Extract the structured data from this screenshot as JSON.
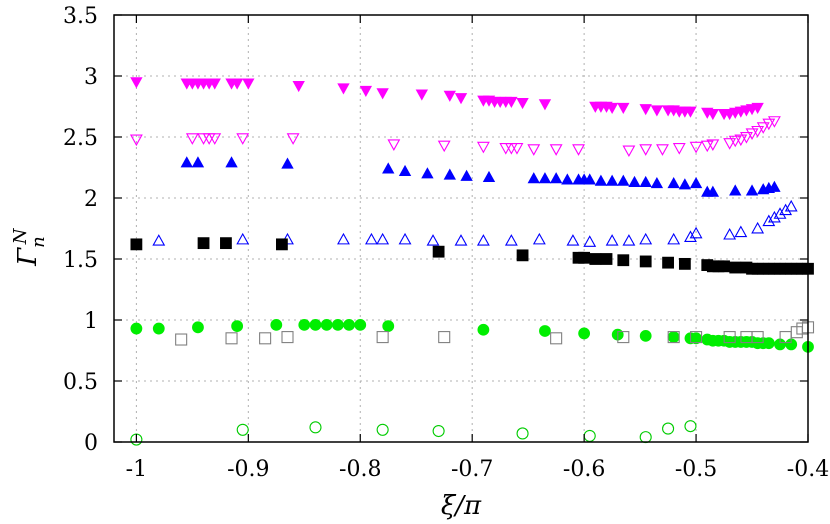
{
  "chart_data": {
    "type": "scatter",
    "xlabel": "ξ/π",
    "ylabel": "Γ",
    "ylabel_sup": "N",
    "ylabel_sub": "n",
    "xlim": [
      -1.02,
      -0.4
    ],
    "ylim": [
      0,
      3.5
    ],
    "xticks": [
      -1,
      -0.9,
      -0.8,
      -0.7,
      -0.6,
      -0.5,
      -0.4
    ],
    "xtick_labels": [
      "-1",
      "-0.9",
      "-0.8",
      "-0.7",
      "-0.6",
      "-0.5",
      "-0.4"
    ],
    "yticks": [
      0,
      0.5,
      1,
      1.5,
      2,
      2.5,
      3,
      3.5
    ],
    "ytick_labels": [
      "0",
      "0.5",
      "1",
      "1.5",
      "2",
      "2.5",
      "3",
      "3.5"
    ],
    "grid": true,
    "legend": "none",
    "series": [
      {
        "marker": "triangle-down-filled",
        "color": "#ff00ff",
        "points": [
          [
            -1.0,
            2.95
          ],
          [
            -0.955,
            2.94
          ],
          [
            -0.95,
            2.94
          ],
          [
            -0.945,
            2.94
          ],
          [
            -0.94,
            2.94
          ],
          [
            -0.935,
            2.94
          ],
          [
            -0.93,
            2.94
          ],
          [
            -0.915,
            2.94
          ],
          [
            -0.91,
            2.94
          ],
          [
            -0.9,
            2.94
          ],
          [
            -0.855,
            2.92
          ],
          [
            -0.815,
            2.9
          ],
          [
            -0.795,
            2.88
          ],
          [
            -0.78,
            2.86
          ],
          [
            -0.745,
            2.85
          ],
          [
            -0.72,
            2.84
          ],
          [
            -0.71,
            2.82
          ],
          [
            -0.69,
            2.8
          ],
          [
            -0.685,
            2.8
          ],
          [
            -0.68,
            2.79
          ],
          [
            -0.675,
            2.79
          ],
          [
            -0.67,
            2.79
          ],
          [
            -0.665,
            2.79
          ],
          [
            -0.655,
            2.78
          ],
          [
            -0.635,
            2.77
          ],
          [
            -0.59,
            2.75
          ],
          [
            -0.585,
            2.75
          ],
          [
            -0.58,
            2.75
          ],
          [
            -0.575,
            2.74
          ],
          [
            -0.565,
            2.74
          ],
          [
            -0.545,
            2.73
          ],
          [
            -0.535,
            2.72
          ],
          [
            -0.525,
            2.72
          ],
          [
            -0.52,
            2.72
          ],
          [
            -0.515,
            2.71
          ],
          [
            -0.51,
            2.71
          ],
          [
            -0.505,
            2.71
          ],
          [
            -0.49,
            2.7
          ],
          [
            -0.485,
            2.69
          ],
          [
            -0.475,
            2.69
          ],
          [
            -0.47,
            2.69
          ],
          [
            -0.465,
            2.7
          ],
          [
            -0.46,
            2.71
          ],
          [
            -0.455,
            2.72
          ],
          [
            -0.45,
            2.73
          ],
          [
            -0.445,
            2.74
          ]
        ]
      },
      {
        "marker": "triangle-down-open",
        "color": "#ff00ff",
        "points": [
          [
            -1.0,
            2.48
          ],
          [
            -0.95,
            2.49
          ],
          [
            -0.94,
            2.49
          ],
          [
            -0.935,
            2.49
          ],
          [
            -0.93,
            2.49
          ],
          [
            -0.905,
            2.49
          ],
          [
            -0.86,
            2.49
          ],
          [
            -0.77,
            2.44
          ],
          [
            -0.725,
            2.43
          ],
          [
            -0.69,
            2.42
          ],
          [
            -0.67,
            2.41
          ],
          [
            -0.665,
            2.41
          ],
          [
            -0.66,
            2.41
          ],
          [
            -0.645,
            2.4
          ],
          [
            -0.625,
            2.4
          ],
          [
            -0.605,
            2.4
          ],
          [
            -0.56,
            2.39
          ],
          [
            -0.545,
            2.4
          ],
          [
            -0.53,
            2.4
          ],
          [
            -0.515,
            2.41
          ],
          [
            -0.5,
            2.42
          ],
          [
            -0.49,
            2.43
          ],
          [
            -0.485,
            2.44
          ],
          [
            -0.47,
            2.45
          ],
          [
            -0.465,
            2.47
          ],
          [
            -0.46,
            2.48
          ],
          [
            -0.455,
            2.5
          ],
          [
            -0.45,
            2.53
          ],
          [
            -0.445,
            2.55
          ],
          [
            -0.44,
            2.58
          ],
          [
            -0.435,
            2.61
          ],
          [
            -0.43,
            2.63
          ]
        ]
      },
      {
        "marker": "triangle-up-filled",
        "color": "#0000ff",
        "points": [
          [
            -0.955,
            2.29
          ],
          [
            -0.945,
            2.29
          ],
          [
            -0.915,
            2.29
          ],
          [
            -0.865,
            2.28
          ],
          [
            -0.775,
            2.24
          ],
          [
            -0.76,
            2.22
          ],
          [
            -0.74,
            2.2
          ],
          [
            -0.72,
            2.19
          ],
          [
            -0.705,
            2.18
          ],
          [
            -0.685,
            2.17
          ],
          [
            -0.645,
            2.16
          ],
          [
            -0.635,
            2.16
          ],
          [
            -0.625,
            2.16
          ],
          [
            -0.615,
            2.15
          ],
          [
            -0.605,
            2.15
          ],
          [
            -0.6,
            2.15
          ],
          [
            -0.595,
            2.15
          ],
          [
            -0.585,
            2.14
          ],
          [
            -0.575,
            2.14
          ],
          [
            -0.565,
            2.14
          ],
          [
            -0.555,
            2.13
          ],
          [
            -0.545,
            2.13
          ],
          [
            -0.535,
            2.12
          ],
          [
            -0.52,
            2.12
          ],
          [
            -0.51,
            2.11
          ],
          [
            -0.5,
            2.12
          ],
          [
            -0.49,
            2.05
          ],
          [
            -0.485,
            2.05
          ],
          [
            -0.465,
            2.06
          ],
          [
            -0.45,
            2.06
          ],
          [
            -0.44,
            2.07
          ],
          [
            -0.435,
            2.08
          ],
          [
            -0.43,
            2.09
          ]
        ]
      },
      {
        "marker": "triangle-up-open",
        "color": "#0000ff",
        "points": [
          [
            -0.98,
            1.65
          ],
          [
            -0.905,
            1.66
          ],
          [
            -0.865,
            1.66
          ],
          [
            -0.815,
            1.66
          ],
          [
            -0.79,
            1.66
          ],
          [
            -0.78,
            1.66
          ],
          [
            -0.76,
            1.66
          ],
          [
            -0.735,
            1.65
          ],
          [
            -0.71,
            1.65
          ],
          [
            -0.69,
            1.65
          ],
          [
            -0.665,
            1.65
          ],
          [
            -0.64,
            1.66
          ],
          [
            -0.61,
            1.65
          ],
          [
            -0.595,
            1.64
          ],
          [
            -0.575,
            1.65
          ],
          [
            -0.56,
            1.65
          ],
          [
            -0.545,
            1.66
          ],
          [
            -0.52,
            1.66
          ],
          [
            -0.505,
            1.68
          ],
          [
            -0.5,
            1.71
          ],
          [
            -0.47,
            1.7
          ],
          [
            -0.46,
            1.72
          ],
          [
            -0.445,
            1.75
          ],
          [
            -0.435,
            1.81
          ],
          [
            -0.43,
            1.84
          ],
          [
            -0.425,
            1.87
          ],
          [
            -0.42,
            1.9
          ],
          [
            -0.415,
            1.93
          ]
        ]
      },
      {
        "marker": "square-filled",
        "color": "#000000",
        "points": [
          [
            -1.0,
            1.62
          ],
          [
            -0.94,
            1.63
          ],
          [
            -0.92,
            1.63
          ],
          [
            -0.87,
            1.62
          ],
          [
            -0.73,
            1.56
          ],
          [
            -0.655,
            1.53
          ],
          [
            -0.605,
            1.51
          ],
          [
            -0.6,
            1.51
          ],
          [
            -0.59,
            1.5
          ],
          [
            -0.58,
            1.5
          ],
          [
            -0.565,
            1.49
          ],
          [
            -0.545,
            1.48
          ],
          [
            -0.525,
            1.47
          ],
          [
            -0.51,
            1.46
          ],
          [
            -0.49,
            1.45
          ],
          [
            -0.485,
            1.44
          ],
          [
            -0.48,
            1.44
          ],
          [
            -0.475,
            1.44
          ],
          [
            -0.465,
            1.43
          ],
          [
            -0.455,
            1.43
          ],
          [
            -0.45,
            1.42
          ],
          [
            -0.445,
            1.42
          ],
          [
            -0.44,
            1.42
          ],
          [
            -0.435,
            1.42
          ],
          [
            -0.43,
            1.42
          ],
          [
            -0.425,
            1.42
          ],
          [
            -0.42,
            1.42
          ],
          [
            -0.415,
            1.42
          ],
          [
            -0.41,
            1.42
          ],
          [
            -0.405,
            1.42
          ],
          [
            -0.4,
            1.42
          ]
        ]
      },
      {
        "marker": "circle-filled",
        "color": "#00ee00",
        "points": [
          [
            -1.0,
            0.93
          ],
          [
            -0.98,
            0.93
          ],
          [
            -0.945,
            0.94
          ],
          [
            -0.91,
            0.95
          ],
          [
            -0.875,
            0.96
          ],
          [
            -0.85,
            0.96
          ],
          [
            -0.84,
            0.96
          ],
          [
            -0.83,
            0.96
          ],
          [
            -0.82,
            0.96
          ],
          [
            -0.81,
            0.96
          ],
          [
            -0.8,
            0.96
          ],
          [
            -0.775,
            0.95
          ],
          [
            -0.69,
            0.92
          ],
          [
            -0.635,
            0.91
          ],
          [
            -0.6,
            0.89
          ],
          [
            -0.57,
            0.88
          ],
          [
            -0.545,
            0.87
          ],
          [
            -0.52,
            0.86
          ],
          [
            -0.505,
            0.85
          ],
          [
            -0.5,
            0.85
          ],
          [
            -0.49,
            0.84
          ],
          [
            -0.485,
            0.83
          ],
          [
            -0.48,
            0.83
          ],
          [
            -0.475,
            0.83
          ],
          [
            -0.47,
            0.82
          ],
          [
            -0.465,
            0.82
          ],
          [
            -0.46,
            0.82
          ],
          [
            -0.455,
            0.82
          ],
          [
            -0.45,
            0.82
          ],
          [
            -0.445,
            0.81
          ],
          [
            -0.44,
            0.81
          ],
          [
            -0.435,
            0.81
          ],
          [
            -0.425,
            0.8
          ],
          [
            -0.415,
            0.8
          ],
          [
            -0.4,
            0.78
          ]
        ]
      },
      {
        "marker": "square-open",
        "color": "#808080",
        "points": [
          [
            -0.96,
            0.84
          ],
          [
            -0.915,
            0.85
          ],
          [
            -0.885,
            0.85
          ],
          [
            -0.865,
            0.86
          ],
          [
            -0.78,
            0.86
          ],
          [
            -0.725,
            0.86
          ],
          [
            -0.625,
            0.85
          ],
          [
            -0.565,
            0.86
          ],
          [
            -0.52,
            0.86
          ],
          [
            -0.5,
            0.86
          ],
          [
            -0.47,
            0.86
          ],
          [
            -0.455,
            0.86
          ],
          [
            -0.445,
            0.86
          ],
          [
            -0.42,
            0.86
          ],
          [
            -0.41,
            0.9
          ],
          [
            -0.405,
            0.93
          ],
          [
            -0.4,
            0.94
          ]
        ]
      },
      {
        "marker": "circle-open",
        "color": "#00cc00",
        "points": [
          [
            -1.0,
            0.02
          ],
          [
            -0.905,
            0.1
          ],
          [
            -0.84,
            0.12
          ],
          [
            -0.78,
            0.1
          ],
          [
            -0.73,
            0.09
          ],
          [
            -0.655,
            0.07
          ],
          [
            -0.595,
            0.05
          ],
          [
            -0.545,
            0.04
          ],
          [
            -0.525,
            0.11
          ],
          [
            -0.505,
            0.13
          ]
        ]
      }
    ]
  }
}
